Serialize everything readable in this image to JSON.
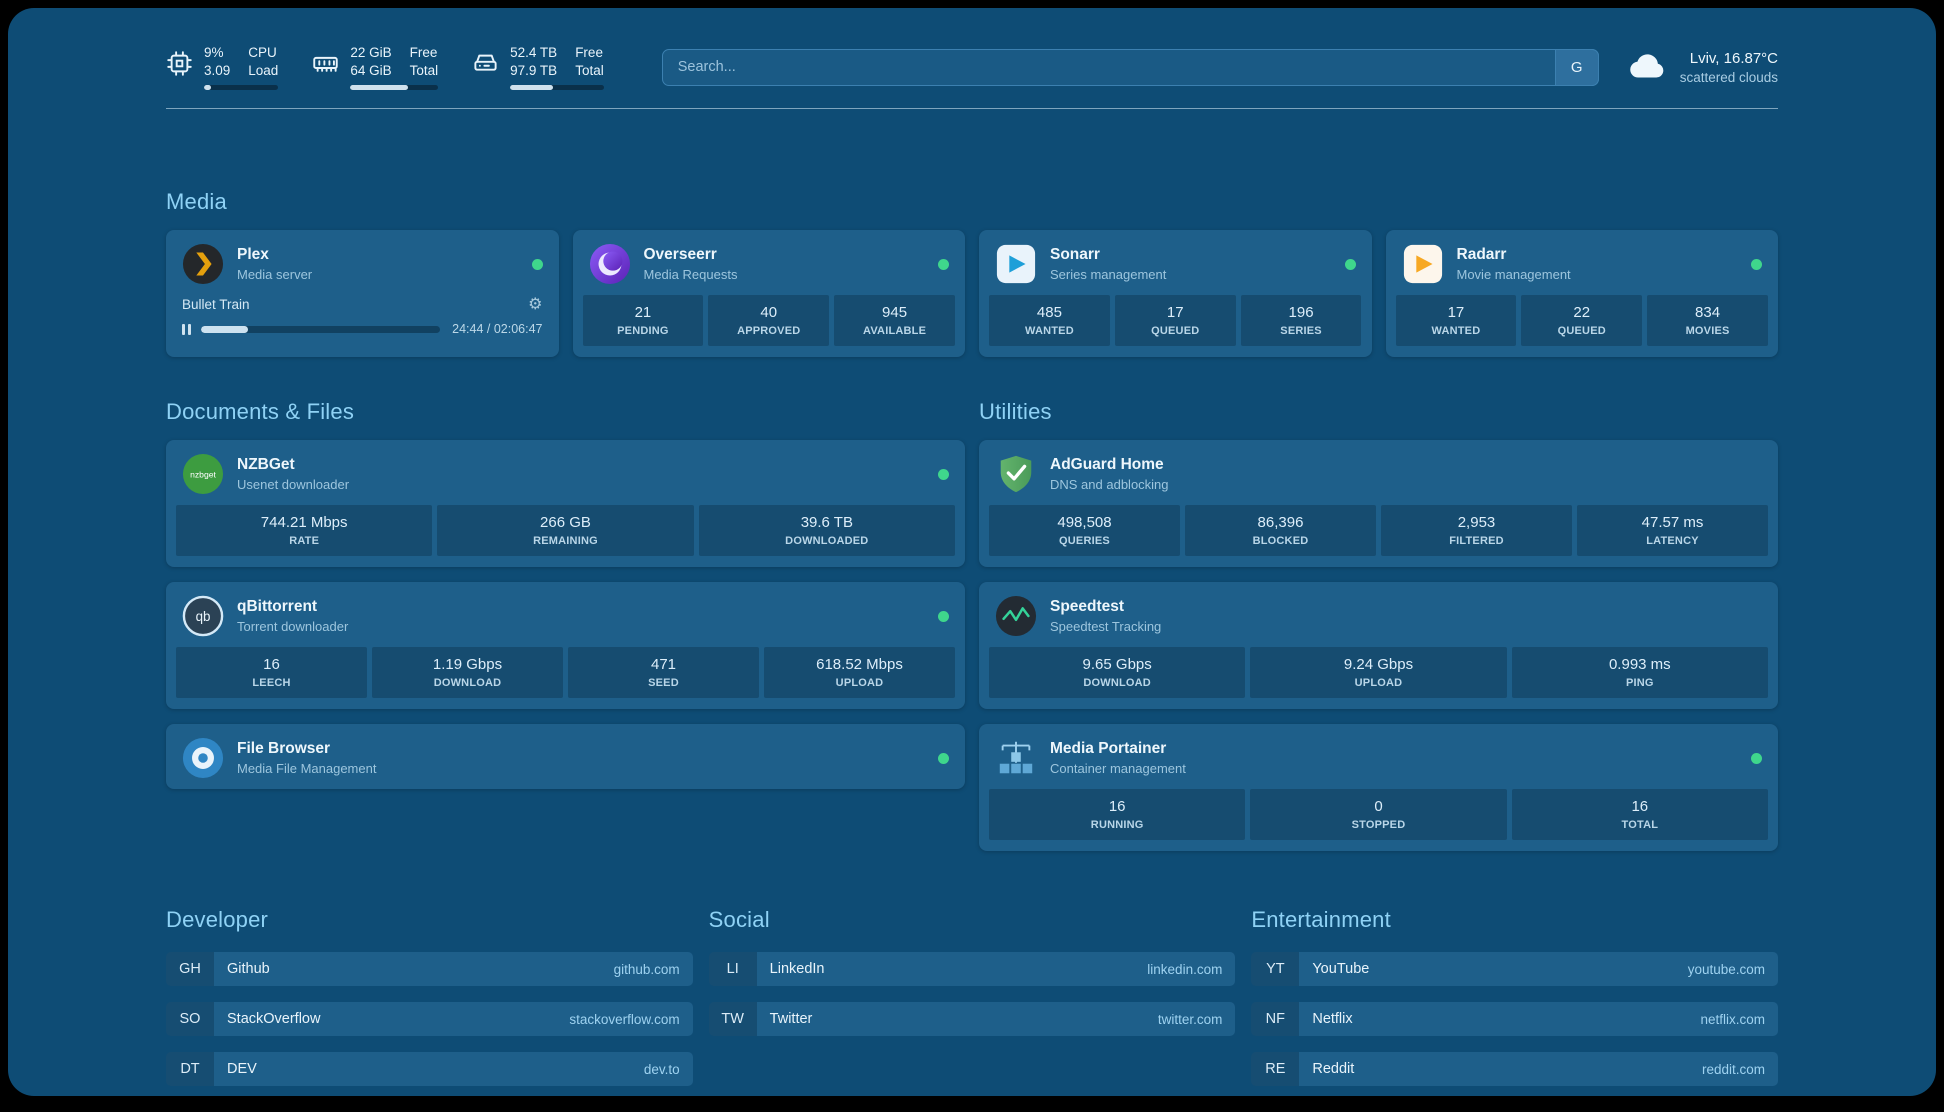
{
  "colors": {
    "background": "#0e4c75",
    "card": "#1e5f8a",
    "section_title": "#8fd2f5",
    "status_online": "#3fd68c",
    "accent_border": "#3c80b0"
  },
  "topbar": {
    "cpu": {
      "icon": "cpu-icon",
      "value_top": "9%",
      "value_bottom": "3.09",
      "label_top": "CPU",
      "label_bottom": "Load",
      "percent": 9
    },
    "memory": {
      "icon": "memory-icon",
      "value_top": "22 GiB",
      "value_bottom": "64 GiB",
      "label_top": "Free",
      "label_bottom": "Total",
      "percent": 66
    },
    "disk": {
      "icon": "disk-icon",
      "value_top": "52.4 TB",
      "value_bottom": "97.9 TB",
      "label_top": "Free",
      "label_bottom": "Total",
      "percent": 46
    },
    "search": {
      "placeholder": "Search...",
      "provider_button": "G"
    },
    "weather": {
      "icon": "cloud-icon",
      "location": "Lviv, 16.87°C",
      "condition": "scattered clouds"
    }
  },
  "media": {
    "title": "Media",
    "plex": {
      "icon": "plex-icon",
      "name": "Plex",
      "desc": "Media server",
      "online": true,
      "now_playing": "Bullet Train",
      "time_display": "24:44 / 02:06:47",
      "progress_percent": 19.5
    },
    "overseerr": {
      "icon": "overseerr-icon",
      "name": "Overseerr",
      "desc": "Media Requests",
      "online": true,
      "stats": [
        {
          "value": "21",
          "label": "PENDING"
        },
        {
          "value": "40",
          "label": "APPROVED"
        },
        {
          "value": "945",
          "label": "AVAILABLE"
        }
      ]
    },
    "sonarr": {
      "icon": "sonarr-icon",
      "name": "Sonarr",
      "desc": "Series management",
      "online": true,
      "stats": [
        {
          "value": "485",
          "label": "WANTED"
        },
        {
          "value": "17",
          "label": "QUEUED"
        },
        {
          "value": "196",
          "label": "SERIES"
        }
      ]
    },
    "radarr": {
      "icon": "radarr-icon",
      "name": "Radarr",
      "desc": "Movie management",
      "online": true,
      "stats": [
        {
          "value": "17",
          "label": "WANTED"
        },
        {
          "value": "22",
          "label": "QUEUED"
        },
        {
          "value": "834",
          "label": "MOVIES"
        }
      ]
    }
  },
  "documents": {
    "title": "Documents & Files",
    "nzbget": {
      "icon": "nzbget-icon",
      "name": "NZBGet",
      "desc": "Usenet downloader",
      "online": true,
      "stats": [
        {
          "value": "744.21 Mbps",
          "label": "RATE"
        },
        {
          "value": "266 GB",
          "label": "REMAINING"
        },
        {
          "value": "39.6 TB",
          "label": "DOWNLOADED"
        }
      ]
    },
    "qbittorrent": {
      "icon": "qbittorrent-icon",
      "name": "qBittorrent",
      "desc": "Torrent downloader",
      "online": true,
      "stats": [
        {
          "value": "16",
          "label": "LEECH"
        },
        {
          "value": "1.19 Gbps",
          "label": "DOWNLOAD"
        },
        {
          "value": "471",
          "label": "SEED"
        },
        {
          "value": "618.52 Mbps",
          "label": "UPLOAD"
        }
      ]
    },
    "filebrowser": {
      "icon": "filebrowser-icon",
      "name": "File Browser",
      "desc": "Media File Management",
      "online": true
    }
  },
  "utilities": {
    "title": "Utilities",
    "adguard": {
      "icon": "adguard-icon",
      "name": "AdGuard Home",
      "desc": "DNS and adblocking",
      "stats": [
        {
          "value": "498,508",
          "label": "QUERIES"
        },
        {
          "value": "86,396",
          "label": "BLOCKED"
        },
        {
          "value": "2,953",
          "label": "FILTERED"
        },
        {
          "value": "47.57 ms",
          "label": "LATENCY"
        }
      ]
    },
    "speedtest": {
      "icon": "speedtest-icon",
      "name": "Speedtest",
      "desc": "Speedtest Tracking",
      "stats": [
        {
          "value": "9.65 Gbps",
          "label": "DOWNLOAD"
        },
        {
          "value": "9.24 Gbps",
          "label": "UPLOAD"
        },
        {
          "value": "0.993 ms",
          "label": "PING"
        }
      ]
    },
    "portainer": {
      "icon": "portainer-icon",
      "name": "Media Portainer",
      "desc": "Container management",
      "online": true,
      "stats": [
        {
          "value": "16",
          "label": "RUNNING"
        },
        {
          "value": "0",
          "label": "STOPPED"
        },
        {
          "value": "16",
          "label": "TOTAL"
        }
      ]
    }
  },
  "bookmarks": {
    "developer": {
      "title": "Developer",
      "items": [
        {
          "abbr": "GH",
          "name": "Github",
          "domain": "github.com"
        },
        {
          "abbr": "SO",
          "name": "StackOverflow",
          "domain": "stackoverflow.com"
        },
        {
          "abbr": "DT",
          "name": "DEV",
          "domain": "dev.to"
        }
      ]
    },
    "social": {
      "title": "Social",
      "items": [
        {
          "abbr": "LI",
          "name": "LinkedIn",
          "domain": "linkedin.com"
        },
        {
          "abbr": "TW",
          "name": "Twitter",
          "domain": "twitter.com"
        }
      ]
    },
    "entertainment": {
      "title": "Entertainment",
      "items": [
        {
          "abbr": "YT",
          "name": "YouTube",
          "domain": "youtube.com"
        },
        {
          "abbr": "NF",
          "name": "Netflix",
          "domain": "netflix.com"
        },
        {
          "abbr": "RE",
          "name": "Reddit",
          "domain": "reddit.com"
        }
      ]
    }
  }
}
